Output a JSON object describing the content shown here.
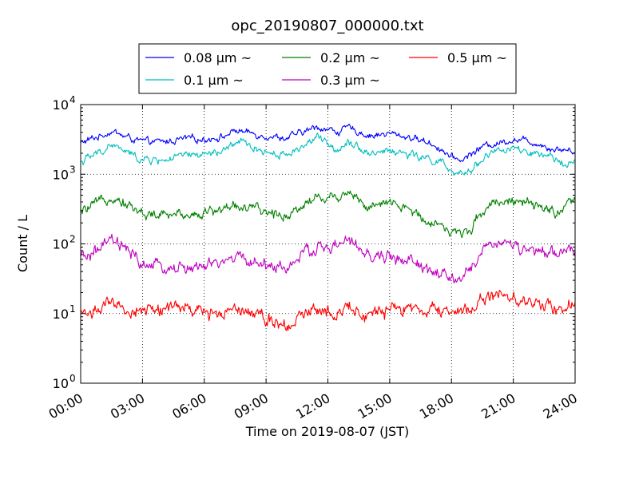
{
  "chart_data": {
    "type": "line",
    "title": "opc_20190807_000000.txt",
    "xlabel": "Time on 2019-08-07 (JST)",
    "ylabel": "Count / L",
    "yscale": "log",
    "ylim": [
      1,
      10000
    ],
    "xlim": [
      0,
      24
    ],
    "grid": true,
    "legend_placement": "top, above plot",
    "x_tick_labels": [
      "00:00",
      "03:00",
      "06:00",
      "09:00",
      "12:00",
      "15:00",
      "18:00",
      "21:00",
      "24:00"
    ],
    "y_tick_labels": [
      {
        "base": "10",
        "exp": "0"
      },
      {
        "base": "10",
        "exp": "1"
      },
      {
        "base": "10",
        "exp": "2"
      },
      {
        "base": "10",
        "exp": "3"
      },
      {
        "base": "10",
        "exp": "4"
      }
    ],
    "x": [
      0,
      1,
      1.5,
      2,
      3,
      4,
      5,
      6,
      7,
      7.5,
      8,
      9,
      10,
      11,
      11.5,
      12,
      12.5,
      13,
      14,
      15,
      16,
      17,
      17.5,
      18,
      18.5,
      19,
      19.5,
      20,
      21,
      22,
      23,
      24
    ],
    "series": [
      {
        "name": "0.08 μm ~",
        "color": "#0000ff",
        "values": [
          2800,
          3600,
          4200,
          3600,
          2900,
          2900,
          3200,
          3200,
          3500,
          4300,
          4000,
          3600,
          3300,
          4200,
          4800,
          4400,
          4100,
          4600,
          3600,
          3800,
          3400,
          2800,
          2300,
          1700,
          1600,
          2000,
          2500,
          2700,
          3200,
          2900,
          2300,
          2200
        ]
      },
      {
        "name": "0.1 μm ~",
        "color": "#00bfbf",
        "values": [
          1500,
          2100,
          2700,
          2200,
          1600,
          1600,
          1800,
          1900,
          2100,
          2900,
          2700,
          2100,
          1900,
          2800,
          3400,
          2600,
          2300,
          3100,
          2000,
          2200,
          1900,
          1600,
          1500,
          1000,
          950,
          1200,
          1700,
          2100,
          2300,
          1900,
          1600,
          1500
        ]
      },
      {
        "name": "0.2 μm ~",
        "color": "#008000",
        "values": [
          280,
          400,
          500,
          420,
          270,
          250,
          270,
          280,
          320,
          370,
          330,
          280,
          260,
          400,
          480,
          450,
          480,
          600,
          320,
          380,
          300,
          210,
          200,
          140,
          140,
          180,
          300,
          410,
          420,
          340,
          290,
          380
        ]
      },
      {
        "name": "0.3 μm ~",
        "color": "#bf00bf",
        "values": [
          60,
          85,
          110,
          90,
          50,
          45,
          45,
          45,
          55,
          65,
          60,
          50,
          45,
          75,
          90,
          85,
          95,
          110,
          65,
          65,
          55,
          40,
          35,
          30,
          32,
          45,
          80,
          110,
          95,
          75,
          70,
          85
        ]
      },
      {
        "name": "0.5 μm ~",
        "color": "#ff0000",
        "values": [
          10,
          12,
          13,
          11,
          11,
          12,
          12,
          10,
          11,
          13,
          12,
          9,
          7,
          10,
          13,
          11,
          11,
          13,
          9,
          11,
          12,
          11,
          10,
          11,
          11,
          12,
          16,
          18,
          17,
          14,
          13,
          13
        ]
      }
    ]
  }
}
